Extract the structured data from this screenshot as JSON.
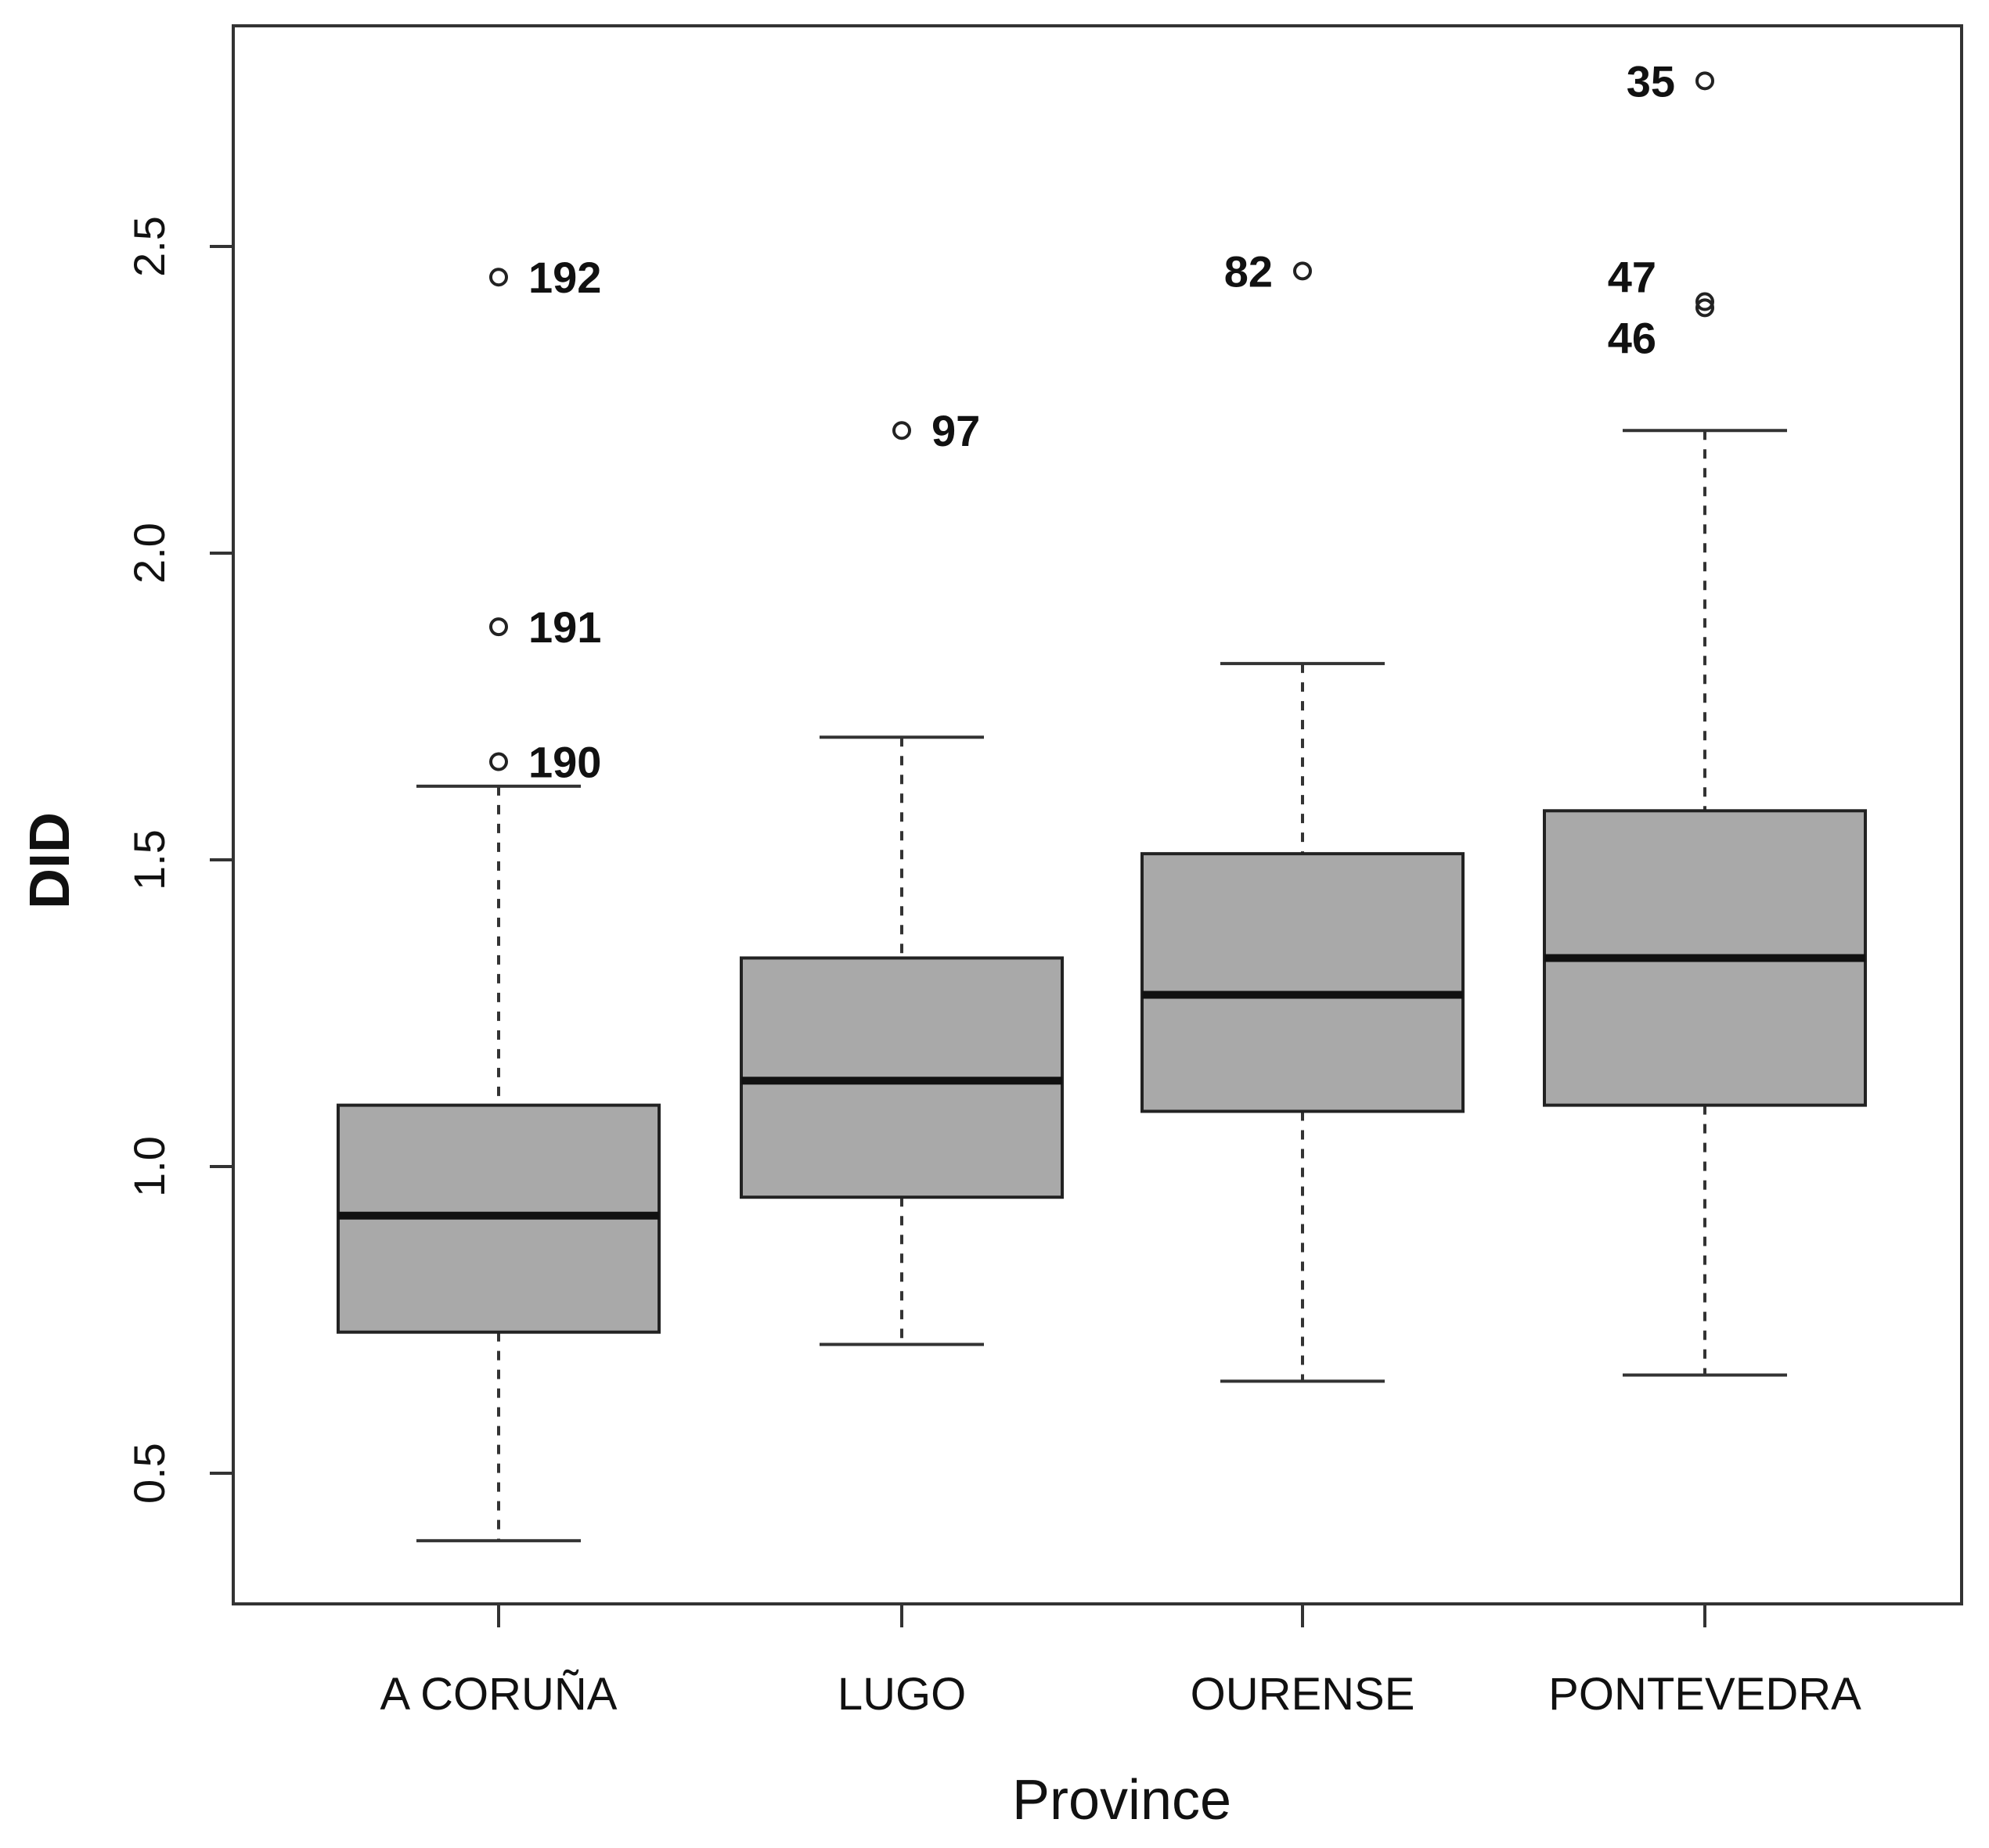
{
  "chart_data": {
    "type": "boxplot",
    "title": "",
    "xlabel": "Province",
    "ylabel": "DID",
    "ylim": [
      0.3,
      2.82
    ],
    "yticks": [
      0.5,
      1.0,
      1.5,
      2.0,
      2.5
    ],
    "ytick_labels": [
      "0.5",
      "1.0",
      "1.5",
      "2.0",
      "2.5"
    ],
    "categories": [
      "A CORUÑA",
      "LUGO",
      "OURENSE",
      "PONTEVEDRA"
    ],
    "box_fill": "#a9a9a9",
    "boxes": [
      {
        "category": "A CORUÑA",
        "whisker_low": 0.39,
        "q1": 0.73,
        "median": 0.92,
        "q3": 1.1,
        "whisker_high": 1.62
      },
      {
        "category": "LUGO",
        "whisker_low": 0.71,
        "q1": 0.95,
        "median": 1.14,
        "q3": 1.34,
        "whisker_high": 1.7
      },
      {
        "category": "OURENSE",
        "whisker_low": 0.65,
        "q1": 1.09,
        "median": 1.28,
        "q3": 1.51,
        "whisker_high": 1.82
      },
      {
        "category": "PONTEVEDRA",
        "whisker_low": 0.66,
        "q1": 1.1,
        "median": 1.34,
        "q3": 1.58,
        "whisker_high": 2.2
      }
    ],
    "outliers": [
      {
        "category": "A CORUÑA",
        "value": 2.45,
        "label": "192",
        "label_side": "right"
      },
      {
        "category": "A CORUÑA",
        "value": 1.88,
        "label": "191",
        "label_side": "right"
      },
      {
        "category": "A CORUÑA",
        "value": 1.66,
        "label": "190",
        "label_side": "right"
      },
      {
        "category": "LUGO",
        "value": 2.2,
        "label": "97",
        "label_side": "right"
      },
      {
        "category": "OURENSE",
        "value": 2.46,
        "label": "82",
        "label_side": "left"
      },
      {
        "category": "PONTEVEDRA",
        "value": 2.77,
        "label": "35",
        "label_side": "left"
      },
      {
        "category": "PONTEVEDRA",
        "value": 2.41,
        "label": "47",
        "label_side": "left-above"
      },
      {
        "category": "PONTEVEDRA",
        "value": 2.4,
        "label": "46",
        "label_side": "left-below"
      }
    ]
  }
}
